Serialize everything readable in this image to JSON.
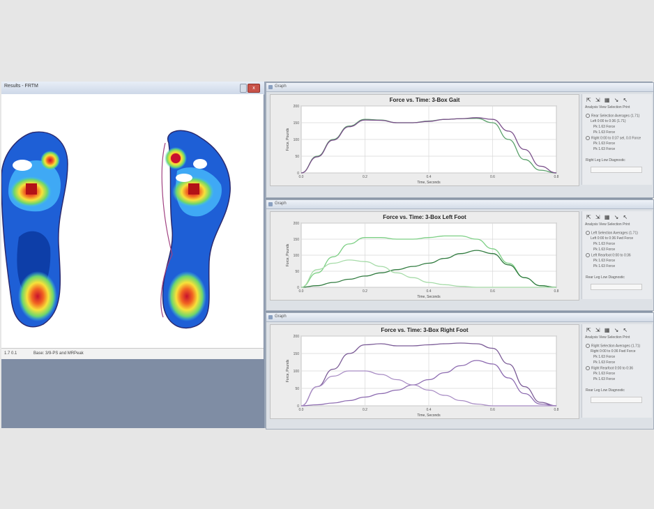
{
  "left_window": {
    "title": "Results - FRTM",
    "close_label": "x",
    "status_left": "1.7  0.1",
    "status_right": "Base: 3/9-PS and MRPeak"
  },
  "panes": [
    {
      "window_title": "Graph",
      "chart_title": "Force vs. Time: 3-Box Gait",
      "ylabel": "Force, Pounds",
      "xlabel": "Time, Seconds",
      "toolbar": "⇱ ⇲ ▦ ↘ ↖",
      "menu": "Analysis  View  Selection  Print",
      "legend": [
        "Rear Selection Averages (1.71)",
        "Left 0:00 to 0:36 (1.71)",
        "Pk 1.63 Force",
        "Pk 1.63 Force",
        "Right 0:00 to 0:37 sel, 0.0 Force",
        "Pk 1.63 Force",
        "Pk 1.63 Force"
      ],
      "footer": "Right Leg Low Diagnostic"
    },
    {
      "window_title": "Graph",
      "chart_title": "Force vs. Time: 3-Box Left Foot",
      "ylabel": "Force, Pounds",
      "xlabel": "Time, Seconds",
      "toolbar": "⇱ ⇲ ▦ ↘ ↖",
      "menu": "Analysis  View  Selection  Print",
      "legend": [
        "Left Selection Averages (1.71)",
        "Left 0:00 to 0:36 Fwd Force",
        "Pk 1.63 Force",
        "Pk 1.63 Force",
        "Left Rearfoot 0:00 to 0:36",
        "Pk 1.63 Force",
        "Pk 1.63 Force"
      ],
      "footer": "Rear Leg Low Diagnostic"
    },
    {
      "window_title": "Graph",
      "chart_title": "Force vs. Time: 3-Box Right Foot",
      "ylabel": "Force, Pounds",
      "xlabel": "Time, Seconds",
      "toolbar": "⇱ ⇲ ▦ ↘ ↖",
      "menu": "Analysis  View  Selection  Print",
      "legend": [
        "Right Selection Averages (1.71)",
        "Right 0:00 to 0:36 Fwd Force",
        "Pk 1.63 Force",
        "Pk 1.63 Force",
        "Right Rearfoot 0:00 to 0:36",
        "Pk 1.63 Force",
        "Pk 1.63 Force"
      ],
      "footer": "Rear Leg Low Diagnostic"
    }
  ],
  "colors": {
    "gait_left": "#5aa06a",
    "gait_right": "#7a4f8a",
    "left_total": "#7ccf84",
    "left_fore": "#2f7a3e",
    "left_rear": "#a6dba8",
    "right_total": "#7a5a96",
    "right_fore": "#8c6ab0",
    "right_rear": "#a88cc4"
  },
  "chart_data": [
    {
      "type": "line",
      "title": "Force vs. Time: 3-Box Gait",
      "xlabel": "Time, Seconds",
      "ylabel": "Force, Pounds",
      "xlim": [
        0.0,
        0.8
      ],
      "ylim": [
        0,
        200
      ],
      "x_ticks": [
        "0.0",
        "0.2",
        "0.4",
        "0.6",
        "0.8"
      ],
      "y_ticks": [
        "0",
        "50",
        "100",
        "150",
        "200"
      ],
      "grid": true,
      "x": [
        0.0,
        0.05,
        0.1,
        0.15,
        0.2,
        0.25,
        0.3,
        0.35,
        0.4,
        0.45,
        0.5,
        0.55,
        0.6,
        0.65,
        0.7,
        0.75,
        0.8
      ],
      "series": [
        {
          "color_key": "gait_left",
          "values": [
            0,
            50,
            100,
            140,
            160,
            158,
            150,
            150,
            155,
            160,
            162,
            163,
            150,
            100,
            40,
            8,
            0
          ]
        },
        {
          "color_key": "gait_right",
          "values": [
            0,
            48,
            98,
            138,
            158,
            157,
            150,
            150,
            154,
            160,
            162,
            165,
            160,
            125,
            70,
            20,
            0
          ]
        }
      ]
    },
    {
      "type": "line",
      "title": "Force vs. Time: 3-Box Left Foot",
      "xlabel": "Time, Seconds",
      "ylabel": "Force, Pounds",
      "xlim": [
        0.0,
        0.8
      ],
      "ylim": [
        0,
        200
      ],
      "x_ticks": [
        "0.0",
        "0.2",
        "0.4",
        "0.6",
        "0.8"
      ],
      "y_ticks": [
        "0",
        "50",
        "100",
        "150",
        "200"
      ],
      "grid": true,
      "x": [
        0.0,
        0.05,
        0.1,
        0.15,
        0.2,
        0.25,
        0.3,
        0.35,
        0.4,
        0.45,
        0.5,
        0.55,
        0.6,
        0.65,
        0.7,
        0.75,
        0.8
      ],
      "series": [
        {
          "color_key": "left_total",
          "values": [
            0,
            45,
            95,
            135,
            155,
            155,
            150,
            150,
            155,
            160,
            160,
            150,
            120,
            75,
            30,
            5,
            0
          ]
        },
        {
          "color_key": "left_fore",
          "values": [
            0,
            5,
            15,
            25,
            35,
            45,
            55,
            65,
            75,
            90,
            105,
            115,
            105,
            70,
            30,
            5,
            0
          ]
        },
        {
          "color_key": "left_rear",
          "values": [
            0,
            55,
            75,
            85,
            80,
            65,
            45,
            30,
            15,
            8,
            3,
            0,
            0,
            0,
            0,
            0,
            0
          ]
        }
      ]
    },
    {
      "type": "line",
      "title": "Force vs. Time: 3-Box Right Foot",
      "xlabel": "Time, Seconds",
      "ylabel": "Force, Pounds",
      "xlim": [
        0.0,
        0.8
      ],
      "ylim": [
        0,
        200
      ],
      "x_ticks": [
        "0.0",
        "0.2",
        "0.4",
        "0.6",
        "0.8"
      ],
      "y_ticks": [
        "0",
        "50",
        "100",
        "150",
        "200"
      ],
      "grid": true,
      "x": [
        0.0,
        0.05,
        0.1,
        0.15,
        0.2,
        0.25,
        0.3,
        0.35,
        0.4,
        0.45,
        0.5,
        0.55,
        0.6,
        0.65,
        0.7,
        0.75,
        0.8
      ],
      "series": [
        {
          "color_key": "right_total",
          "values": [
            0,
            55,
            105,
            150,
            175,
            178,
            172,
            172,
            175,
            178,
            180,
            178,
            165,
            120,
            55,
            10,
            0
          ]
        },
        {
          "color_key": "right_fore",
          "values": [
            0,
            3,
            8,
            15,
            25,
            35,
            45,
            60,
            75,
            95,
            115,
            130,
            120,
            80,
            35,
            5,
            0
          ]
        },
        {
          "color_key": "right_rear",
          "values": [
            0,
            55,
            85,
            100,
            100,
            90,
            75,
            60,
            45,
            30,
            15,
            5,
            0,
            0,
            0,
            0,
            0
          ]
        }
      ]
    }
  ]
}
